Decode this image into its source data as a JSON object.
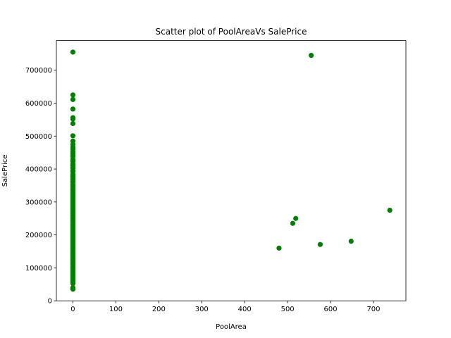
{
  "chart_data": {
    "type": "scatter",
    "title": "Scatter plot of PoolAreaVs SalePrice",
    "xlabel": "PoolArea",
    "ylabel": "SalePrice",
    "xlim": [
      -38.5,
      775.5
    ],
    "ylim": [
      0,
      790000
    ],
    "xticks": [
      0,
      100,
      200,
      300,
      400,
      500,
      600,
      700
    ],
    "yticks": [
      0,
      100000,
      200000,
      300000,
      400000,
      500000,
      600000,
      700000
    ],
    "grid": false,
    "marker_color": "#008000",
    "points": [
      [
        0,
        755000
      ],
      [
        0,
        625000
      ],
      [
        0,
        611000
      ],
      [
        0,
        582000
      ],
      [
        0,
        556000
      ],
      [
        0,
        552000
      ],
      [
        0,
        538000
      ],
      [
        0,
        501000
      ],
      [
        0,
        485000
      ],
      [
        0,
        475000
      ],
      [
        0,
        466500
      ],
      [
        0,
        460000
      ],
      [
        0,
        451950
      ],
      [
        0,
        446261
      ],
      [
        0,
        440000
      ],
      [
        0,
        438780
      ],
      [
        0,
        430000
      ],
      [
        0,
        426000
      ],
      [
        0,
        424870
      ],
      [
        0,
        423000
      ],
      [
        0,
        415298
      ],
      [
        0,
        412500
      ],
      [
        0,
        410000
      ],
      [
        0,
        403000
      ],
      [
        0,
        402861
      ],
      [
        0,
        395192
      ],
      [
        0,
        394617
      ],
      [
        0,
        392500
      ],
      [
        0,
        385000
      ],
      [
        0,
        381000
      ],
      [
        0,
        378500
      ],
      [
        0,
        377500
      ],
      [
        0,
        375000
      ],
      [
        0,
        372500
      ],
      [
        0,
        369900
      ],
      [
        0,
        367294
      ],
      [
        0,
        361919
      ],
      [
        0,
        360000
      ],
      [
        0,
        354000
      ],
      [
        0,
        350000
      ],
      [
        0,
        345000
      ],
      [
        0,
        340000
      ],
      [
        0,
        337500
      ],
      [
        0,
        335000
      ],
      [
        0,
        330000
      ],
      [
        0,
        325000
      ],
      [
        0,
        320000
      ],
      [
        0,
        315000
      ],
      [
        0,
        310000
      ],
      [
        0,
        305000
      ],
      [
        0,
        300000
      ],
      [
        0,
        295000
      ],
      [
        0,
        290000
      ],
      [
        0,
        285000
      ],
      [
        0,
        280000
      ],
      [
        0,
        275000
      ],
      [
        0,
        270000
      ],
      [
        0,
        265000
      ],
      [
        0,
        260000
      ],
      [
        0,
        255000
      ],
      [
        0,
        250000
      ],
      [
        0,
        245000
      ],
      [
        0,
        240000
      ],
      [
        0,
        235000
      ],
      [
        0,
        230000
      ],
      [
        0,
        225000
      ],
      [
        0,
        220000
      ],
      [
        0,
        215000
      ],
      [
        0,
        210000
      ],
      [
        0,
        205000
      ],
      [
        0,
        200000
      ],
      [
        0,
        195000
      ],
      [
        0,
        190000
      ],
      [
        0,
        185000
      ],
      [
        0,
        180000
      ],
      [
        0,
        175000
      ],
      [
        0,
        170000
      ],
      [
        0,
        165000
      ],
      [
        0,
        160000
      ],
      [
        0,
        155000
      ],
      [
        0,
        150000
      ],
      [
        0,
        145000
      ],
      [
        0,
        140000
      ],
      [
        0,
        135000
      ],
      [
        0,
        130000
      ],
      [
        0,
        125000
      ],
      [
        0,
        120000
      ],
      [
        0,
        115000
      ],
      [
        0,
        110000
      ],
      [
        0,
        105000
      ],
      [
        0,
        100000
      ],
      [
        0,
        95000
      ],
      [
        0,
        90000
      ],
      [
        0,
        85000
      ],
      [
        0,
        80000
      ],
      [
        0,
        75000
      ],
      [
        0,
        70000
      ],
      [
        0,
        65000
      ],
      [
        0,
        60000
      ],
      [
        0,
        55000
      ],
      [
        0,
        52500
      ],
      [
        0,
        40000
      ],
      [
        0,
        37900
      ],
      [
        0,
        35311
      ],
      [
        480,
        160000
      ],
      [
        512,
        235000
      ],
      [
        519,
        250000
      ],
      [
        555,
        745000
      ],
      [
        576,
        171000
      ],
      [
        648,
        181000
      ],
      [
        738,
        274970
      ]
    ]
  }
}
